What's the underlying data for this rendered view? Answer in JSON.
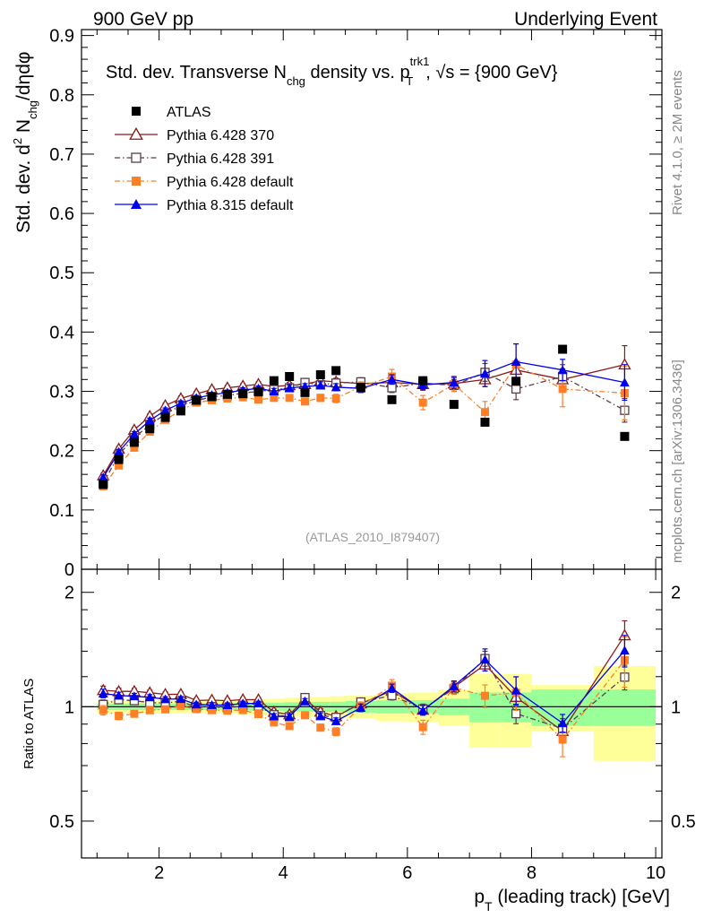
{
  "header": {
    "left": "900 GeV pp",
    "right": "Underlying Event"
  },
  "side_labels": {
    "rivet": "Rivet 4.1.0, ≥ 2M events",
    "mcplots": "mcplots.cern.ch [arXiv:1306.3436]"
  },
  "chart_data": {
    "type": "scatter",
    "title": {
      "part1": "Std. dev. Transverse N",
      "sub1": "chg",
      "part2": " density vs. p",
      "sup2": "trk1",
      "sub2": "T",
      "part3": ", √s = {900 GeV}"
    },
    "ylabel": {
      "part1": "Std. dev. d",
      "sup1": "2",
      "part2": " N",
      "sub2": "chg",
      "part3": "/dηdφ"
    },
    "xlabel": {
      "part1": "p",
      "sub1": "T",
      "part2": " (leading track) [GeV]"
    },
    "ratio_ylabel": "Ratio to ATLAS",
    "watermark": "(ATLAS_2010_I879407)",
    "xlim": [
      0.75,
      10.1
    ],
    "ylim": [
      0,
      0.91
    ],
    "ratio_ylim": [
      0.4,
      2.3
    ],
    "x_ticks": [
      2,
      4,
      6,
      8,
      10
    ],
    "y_ticks": [
      0,
      0.1,
      0.2,
      0.3,
      0.4,
      0.5,
      0.6,
      0.7,
      0.8,
      0.9
    ],
    "y_tick_labels": [
      "0",
      "0.1",
      "0.2",
      "0.3",
      "0.4",
      "0.5",
      "0.6",
      "0.7",
      "0.8",
      "0.9"
    ],
    "ratio_ticks": [
      0.5,
      1,
      2
    ],
    "ratio_tick_labels": [
      "0.5",
      "1",
      "2"
    ],
    "x": [
      1.1,
      1.35,
      1.6,
      1.85,
      2.1,
      2.35,
      2.6,
      2.85,
      3.1,
      3.35,
      3.6,
      3.85,
      4.1,
      4.35,
      4.6,
      4.85,
      5.25,
      5.75,
      6.25,
      6.75,
      7.25,
      7.75,
      8.5,
      9.5
    ],
    "x_edges": [
      1.0,
      1.25,
      1.5,
      1.75,
      2.0,
      2.25,
      2.5,
      2.75,
      3.0,
      3.25,
      3.5,
      3.75,
      4.0,
      4.25,
      4.5,
      4.75,
      5.0,
      5.5,
      6.0,
      6.5,
      7.0,
      7.5,
      8.0,
      9.0,
      10.0
    ],
    "data": {
      "name": "ATLAS",
      "values": [
        0.143,
        0.185,
        0.214,
        0.237,
        0.256,
        0.267,
        0.285,
        0.291,
        0.295,
        0.296,
        0.299,
        0.318,
        0.325,
        0.298,
        0.328,
        0.335,
        0.307,
        0.286,
        0.318,
        0.278,
        0.248,
        0.317,
        0.371,
        0.224
      ],
      "band_inner": [
        0.04,
        0.04,
        0.04,
        0.04,
        0.04,
        0.04,
        0.04,
        0.04,
        0.04,
        0.045,
        0.05,
        0.05,
        0.055,
        0.06,
        0.06,
        0.06,
        0.07,
        0.08,
        0.08,
        0.1,
        0.18,
        0.18,
        0.22,
        0.22
      ],
      "band_outer": [
        0.08,
        0.08,
        0.08,
        0.08,
        0.08,
        0.08,
        0.08,
        0.08,
        0.085,
        0.09,
        0.1,
        0.1,
        0.11,
        0.12,
        0.12,
        0.13,
        0.14,
        0.17,
        0.18,
        0.22,
        0.44,
        0.44,
        0.28,
        0.56
      ]
    },
    "series": [
      {
        "name": "Pythia 6.428 370",
        "color": "#8b1a1a",
        "marker": "triangle-open",
        "dash": "",
        "values": [
          0.158,
          0.203,
          0.235,
          0.258,
          0.276,
          0.288,
          0.296,
          0.303,
          0.306,
          0.309,
          0.312,
          0.308,
          0.31,
          0.312,
          0.318,
          0.316,
          0.313,
          0.315,
          0.312,
          0.313,
          0.32,
          0.336,
          0.32,
          0.345
        ],
        "errors": [
          0.004,
          0.004,
          0.004,
          0.004,
          0.004,
          0.004,
          0.004,
          0.004,
          0.004,
          0.004,
          0.004,
          0.005,
          0.005,
          0.005,
          0.006,
          0.006,
          0.007,
          0.008,
          0.009,
          0.01,
          0.012,
          0.015,
          0.018,
          0.032
        ]
      },
      {
        "name": "Pythia 6.428 391",
        "color": "#5a3d4a",
        "marker": "square-open",
        "dash": "6,3,1.5,3",
        "values": [
          0.145,
          0.193,
          0.222,
          0.243,
          0.262,
          0.276,
          0.284,
          0.291,
          0.293,
          0.297,
          0.3,
          0.303,
          0.306,
          0.315,
          0.311,
          0.314,
          0.316,
          0.306,
          0.314,
          0.31,
          0.332,
          0.304,
          0.325,
          0.268
        ],
        "errors": [
          0.004,
          0.004,
          0.004,
          0.004,
          0.004,
          0.004,
          0.004,
          0.004,
          0.004,
          0.004,
          0.004,
          0.005,
          0.005,
          0.005,
          0.006,
          0.006,
          0.007,
          0.008,
          0.009,
          0.01,
          0.015,
          0.018,
          0.02,
          0.02
        ]
      },
      {
        "name": "Pythia 6.428 default",
        "color": "#ff7f27",
        "marker": "square",
        "dash": "6,3,1.5,3",
        "values": [
          0.14,
          0.175,
          0.205,
          0.232,
          0.252,
          0.268,
          0.281,
          0.285,
          0.288,
          0.29,
          0.286,
          0.289,
          0.289,
          0.283,
          0.289,
          0.288,
          0.308,
          0.325,
          0.281,
          0.312,
          0.265,
          0.345,
          0.304,
          0.297
        ],
        "errors": [
          0.004,
          0.004,
          0.004,
          0.004,
          0.004,
          0.004,
          0.004,
          0.004,
          0.004,
          0.004,
          0.004,
          0.005,
          0.005,
          0.005,
          0.006,
          0.007,
          0.008,
          0.012,
          0.012,
          0.012,
          0.018,
          0.035,
          0.03,
          0.045
        ]
      },
      {
        "name": "Pythia 8.315 default",
        "color": "#0000ee",
        "marker": "triangle",
        "dash": "",
        "values": [
          0.155,
          0.198,
          0.228,
          0.251,
          0.268,
          0.28,
          0.289,
          0.294,
          0.298,
          0.302,
          0.305,
          0.3,
          0.306,
          0.308,
          0.31,
          0.307,
          0.305,
          0.32,
          0.311,
          0.315,
          0.33,
          0.35,
          0.336,
          0.315
        ],
        "errors": [
          0.004,
          0.004,
          0.004,
          0.004,
          0.004,
          0.004,
          0.004,
          0.004,
          0.004,
          0.004,
          0.004,
          0.005,
          0.005,
          0.005,
          0.006,
          0.006,
          0.007,
          0.008,
          0.009,
          0.01,
          0.022,
          0.03,
          0.018,
          0.03
        ]
      }
    ]
  }
}
